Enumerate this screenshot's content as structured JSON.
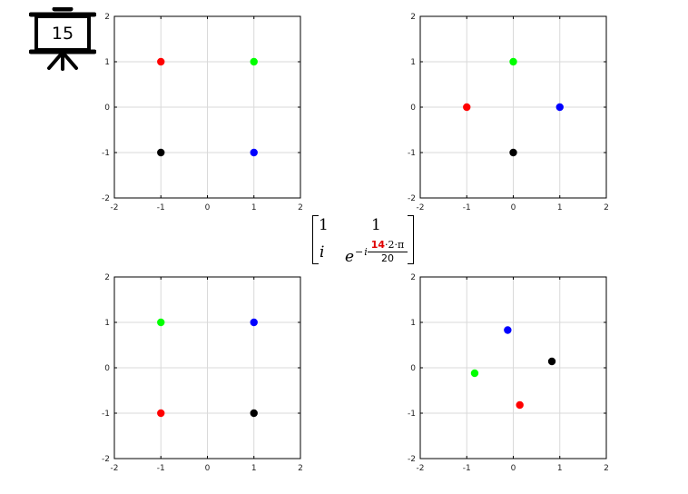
{
  "slide_number": "15",
  "matrix": {
    "r1c1": "1",
    "r1c2": "1",
    "r2c1": "i",
    "r2c2": {
      "base": "e",
      "sign": "−",
      "i": "i",
      "numerator_highlight": "14",
      "numerator_rest": "·2·π",
      "denominator": "20"
    }
  },
  "colors": {
    "red": "#ff0000",
    "green": "#00ff00",
    "blue": "#0000ff",
    "black": "#000000",
    "highlight": "#e00000"
  },
  "chart_data": [
    {
      "type": "scatter",
      "xlim": [
        -2,
        2
      ],
      "ylim": [
        -2,
        2
      ],
      "xticks": [
        "-2",
        "-1",
        "0",
        "1",
        "2"
      ],
      "yticks": [
        "2",
        "1",
        "0",
        "-1",
        "-2"
      ],
      "grid": true,
      "points": [
        {
          "color": "red",
          "x": -1,
          "y": 1
        },
        {
          "color": "green",
          "x": 1,
          "y": 1
        },
        {
          "color": "black",
          "x": -1,
          "y": -1
        },
        {
          "color": "blue",
          "x": 1,
          "y": -1
        }
      ]
    },
    {
      "type": "scatter",
      "xlim": [
        -2,
        2
      ],
      "ylim": [
        -2,
        2
      ],
      "xticks": [
        "-2",
        "-1",
        "0",
        "1",
        "2"
      ],
      "yticks": [
        "2",
        "1",
        "0",
        "-1",
        "-2"
      ],
      "grid": true,
      "points": [
        {
          "color": "green",
          "x": 0,
          "y": 1
        },
        {
          "color": "red",
          "x": -1,
          "y": 0
        },
        {
          "color": "blue",
          "x": 1,
          "y": 0
        },
        {
          "color": "black",
          "x": 0,
          "y": -1
        }
      ]
    },
    {
      "type": "scatter",
      "xlim": [
        -2,
        2
      ],
      "ylim": [
        -2,
        2
      ],
      "xticks": [
        "-2",
        "-1",
        "0",
        "1",
        "2"
      ],
      "yticks": [
        "2",
        "1",
        "0",
        "-1",
        "-2"
      ],
      "grid": true,
      "points": [
        {
          "color": "green",
          "x": -1,
          "y": 1
        },
        {
          "color": "blue",
          "x": 1,
          "y": 1
        },
        {
          "color": "red",
          "x": -1,
          "y": -1
        },
        {
          "color": "black",
          "x": 1,
          "y": -1
        }
      ]
    },
    {
      "type": "scatter",
      "xlim": [
        -2,
        2
      ],
      "ylim": [
        -2,
        2
      ],
      "xticks": [
        "-2",
        "-1",
        "0",
        "1",
        "2"
      ],
      "yticks": [
        "2",
        "1",
        "0",
        "-1",
        "-2"
      ],
      "grid": true,
      "points": [
        {
          "color": "blue",
          "x": -0.12,
          "y": 0.83
        },
        {
          "color": "black",
          "x": 0.83,
          "y": 0.14
        },
        {
          "color": "green",
          "x": -0.83,
          "y": -0.12
        },
        {
          "color": "red",
          "x": 0.14,
          "y": -0.82
        }
      ]
    }
  ]
}
